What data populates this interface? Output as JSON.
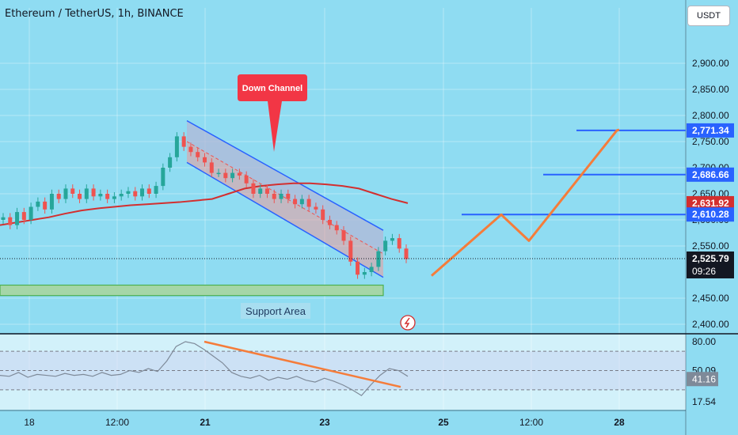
{
  "header": {
    "title": "Ethereum / TetherUS, 1h, BINANCE",
    "currency": "USDT"
  },
  "colors": {
    "background": "#8fdcf2",
    "up": "#26a69a",
    "down": "#ef5350",
    "ma": "#d32f2f",
    "channel": "#2962ff",
    "projection": "#f57c3a",
    "support": "#a5d6a7",
    "rsi": "#7e8a99"
  },
  "annotations": {
    "down_channel": "Down Channel",
    "support_area": "Support Area"
  },
  "chart_data": [
    {
      "type": "candlestick",
      "title": "Ethereum / TetherUS, 1h, BINANCE",
      "ylim": [
        2390,
        2950
      ],
      "yticks": [
        2400,
        2450,
        2550,
        2600,
        2650,
        2700,
        2750,
        2800,
        2850,
        2900
      ],
      "ytick_labels": [
        "2,400.00",
        "2,450.00",
        "2,550.00",
        "2,600.00",
        "2,650.00",
        "2,700.00",
        "2,750.00",
        "2,800.00",
        "2,850.00",
        "2,900.00"
      ],
      "xticks": [
        "18",
        "12:00",
        "21",
        "23",
        "25",
        "12:00",
        "28"
      ],
      "price_tags": [
        {
          "label": "2,771.34",
          "value": 2771.34,
          "color": "#2962ff"
        },
        {
          "label": "2,686.66",
          "value": 2686.66,
          "color": "#2962ff"
        },
        {
          "label": "2,631.92",
          "value": 2631.92,
          "color": "#d32f2f"
        },
        {
          "label": "2,610.28",
          "value": 2610.28,
          "color": "#2962ff"
        },
        {
          "label": "2,525.79",
          "value": 2525.79,
          "color": "#131722"
        }
      ],
      "countdown": "09:26",
      "ohlc_path": [
        2605,
        2590,
        2615,
        2600,
        2625,
        2635,
        2620,
        2650,
        2640,
        2660,
        2650,
        2640,
        2660,
        2645,
        2650,
        2640,
        2645,
        2650,
        2655,
        2645,
        2660,
        2650,
        2665,
        2700,
        2720,
        2760,
        2740,
        2730,
        2720,
        2710,
        2690,
        2690,
        2680,
        2690,
        2685,
        2670,
        2650,
        2660,
        2650,
        2640,
        2650,
        2640,
        2630,
        2640,
        2625,
        2620,
        2600,
        2590,
        2580,
        2560,
        2520,
        2495,
        2500,
        2510,
        2540,
        2560,
        2565,
        2545,
        2525
      ],
      "ma_path": [
        2590,
        2595,
        2600,
        2605,
        2612,
        2618,
        2622,
        2625,
        2628,
        2630,
        2632,
        2634,
        2637,
        2640,
        2650,
        2660,
        2665,
        2668,
        2670,
        2670,
        2668,
        2665,
        2660,
        2650,
        2640,
        2632
      ],
      "channel": {
        "upper_start": 2790,
        "upper_end": 2580,
        "lower_start": 2710,
        "lower_end": 2490
      },
      "horizontal_levels": [
        2771.34,
        2686.66,
        2610.28
      ],
      "support_zone": [
        2455,
        2475
      ],
      "projection_path": [
        2493,
        2610,
        2560,
        2771.34,
        2740
      ]
    },
    {
      "type": "line",
      "ylim": [
        10,
        85
      ],
      "yticks": [
        80,
        50.09,
        41.16,
        17.54
      ],
      "ytick_labels": [
        "80.00",
        "50.09",
        "41.16",
        "17.54"
      ],
      "rsi_path": [
        45,
        44,
        48,
        43,
        46,
        45,
        44,
        47,
        45,
        46,
        44,
        48,
        45,
        46,
        50,
        48,
        52,
        49,
        60,
        75,
        80,
        78,
        72,
        65,
        58,
        48,
        44,
        42,
        45,
        40,
        43,
        41,
        44,
        40,
        38,
        42,
        39,
        35,
        30,
        24,
        35,
        45,
        52,
        50,
        44
      ],
      "trendline": [
        80,
        33
      ],
      "band": [
        30,
        70
      ]
    }
  ]
}
